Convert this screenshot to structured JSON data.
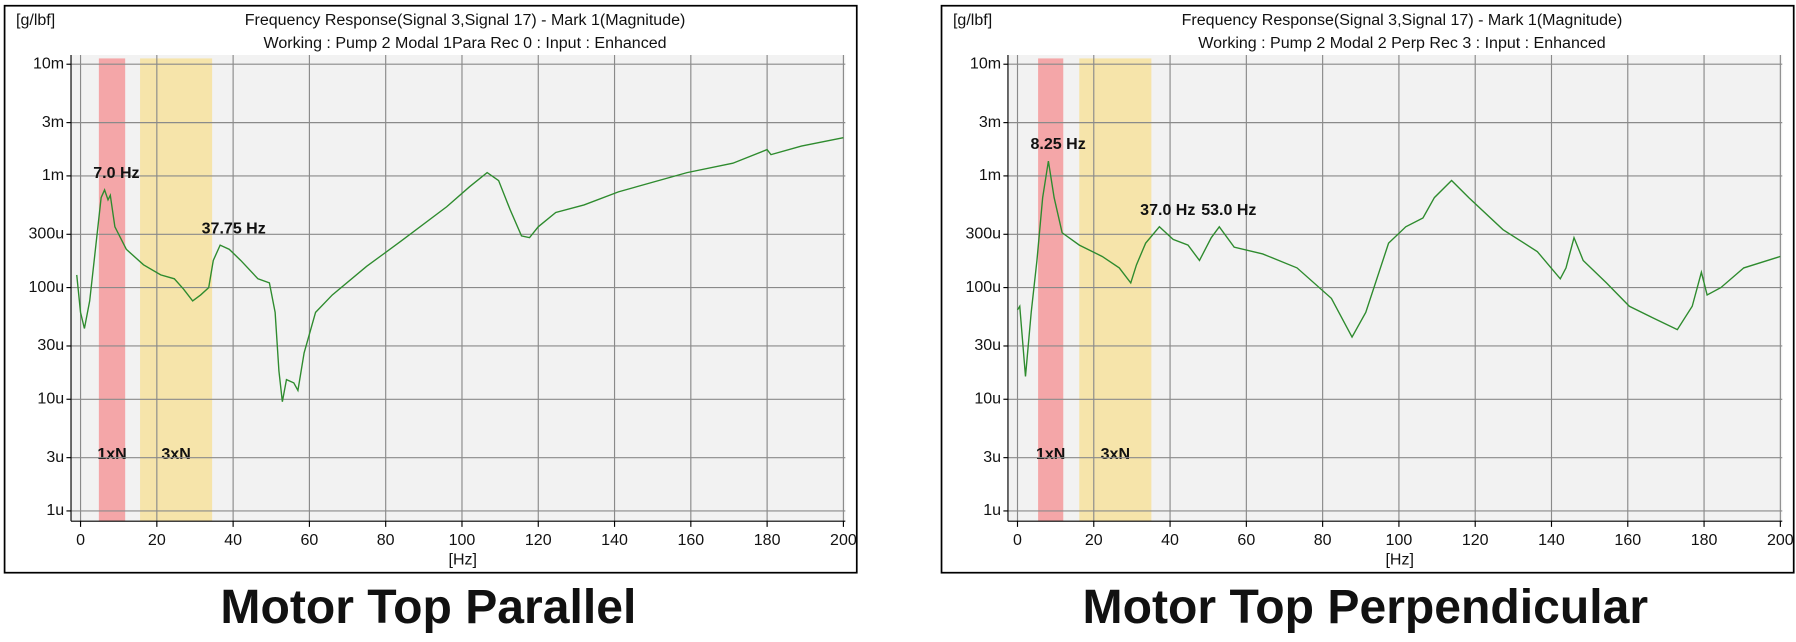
{
  "chart_data": [
    {
      "type": "line",
      "title": "Frequency Response(Signal 3,Signal 17) - Mark 1(Magnitude)",
      "subtitle": "Working : Pump 2 Modal 1Para Rec 0 : Input : Enhanced",
      "y_label": "[g/lbf]",
      "x_label": "[Hz]",
      "caption": "Motor Top Parallel",
      "log_y": true,
      "grid": true,
      "color": "#2e8b2e",
      "xlim": [
        -2.5,
        200.5
      ],
      "xticks": [
        0,
        20,
        40,
        60,
        80,
        100,
        120,
        140,
        160,
        180,
        200
      ],
      "ylim": [
        8.1e-07,
        0.0121
      ],
      "yticks": [
        {
          "value": 1e-06,
          "label": "1u"
        },
        {
          "value": 3e-06,
          "label": "3u"
        },
        {
          "value": 1e-05,
          "label": "10u"
        },
        {
          "value": 3e-05,
          "label": "30u"
        },
        {
          "value": 0.0001,
          "label": "100u"
        },
        {
          "value": 0.0003,
          "label": "300u"
        },
        {
          "value": 0.001,
          "label": "1m"
        },
        {
          "value": 0.003,
          "label": "3m"
        },
        {
          "value": 0.01,
          "label": "10m"
        }
      ],
      "bands": [
        {
          "label": "1xN",
          "x": [
            4.8,
            11.7
          ],
          "color": "#f4a6a8"
        },
        {
          "label": "3xN",
          "x": [
            15.6,
            34.5
          ],
          "color": "#f6e4aa"
        }
      ],
      "annotations": [
        {
          "label": "7.0 Hz",
          "x": 7.0,
          "y": 0.00075
        },
        {
          "label": "37.75 Hz",
          "x": 37.75,
          "y": 0.00024
        }
      ],
      "x": [
        -1,
        0,
        1,
        2.4,
        3.9,
        5.4,
        6.3,
        7.2,
        7.8,
        9,
        12,
        16.5,
        21,
        24.6,
        27,
        29.4,
        31.5,
        33.6,
        34.8,
        36.6,
        39,
        42,
        46.5,
        49.5,
        51,
        52,
        52.9,
        54,
        55.9,
        57,
        58.6,
        61.6,
        66,
        75,
        84,
        96,
        102,
        106.6,
        109.6,
        112.6,
        115.6,
        117.7,
        120,
        124.6,
        132,
        141,
        159,
        171,
        180,
        181,
        189,
        200
      ],
      "values": [
        0.00013,
        6e-05,
        4.3e-05,
        7.6e-05,
        0.00022,
        0.00064,
        0.00075,
        0.00061,
        0.00067,
        0.00035,
        0.00022,
        0.00016,
        0.00013,
        0.00012,
        9.7e-05,
        7.6e-05,
        8.6e-05,
        0.0001,
        0.000175,
        0.00024,
        0.00022,
        0.000175,
        0.00012,
        0.00011,
        6e-05,
        1.8e-05,
        9.5e-06,
        1.5e-05,
        1.4e-05,
        1.2e-05,
        2.6e-05,
        6e-05,
        8.6e-05,
        0.000155,
        0.00026,
        0.00053,
        0.0008,
        0.00107,
        0.00091,
        0.0005,
        0.00029,
        0.00028,
        0.00035,
        0.00047,
        0.00055,
        0.00072,
        0.00107,
        0.0013,
        0.00172,
        0.00155,
        0.00185,
        0.0022
      ]
    },
    {
      "type": "line",
      "title": "Frequency Response(Signal 3,Signal 17) - Mark 1(Magnitude)",
      "subtitle": "Working : Pump 2 Modal 2 Perp Rec 3 : Input : Enhanced",
      "y_label": "[g/lbf]",
      "x_label": "[Hz]",
      "caption": "Motor Top Perpendicular",
      "log_y": true,
      "grid": true,
      "color": "#2e8b2e",
      "xlim": [
        -2.5,
        200.5
      ],
      "xticks": [
        0,
        20,
        40,
        60,
        80,
        100,
        120,
        140,
        160,
        180,
        200
      ],
      "ylim": [
        8.1e-07,
        0.0121
      ],
      "yticks": [
        {
          "value": 1e-06,
          "label": "1u"
        },
        {
          "value": 3e-06,
          "label": "3u"
        },
        {
          "value": 1e-05,
          "label": "10u"
        },
        {
          "value": 3e-05,
          "label": "30u"
        },
        {
          "value": 0.0001,
          "label": "100u"
        },
        {
          "value": 0.0003,
          "label": "300u"
        },
        {
          "value": 0.001,
          "label": "1m"
        },
        {
          "value": 0.003,
          "label": "3m"
        },
        {
          "value": 0.01,
          "label": "10m"
        }
      ],
      "bands": [
        {
          "label": "1xN",
          "x": [
            5.4,
            12.0
          ],
          "color": "#f4a6a8"
        },
        {
          "label": "3xN",
          "x": [
            16.2,
            35.1
          ],
          "color": "#f6e4aa"
        }
      ],
      "annotations": [
        {
          "label": "8.25 Hz",
          "x": 8.25,
          "y": 0.00136
        },
        {
          "label": "37.0 Hz",
          "x": 37.0,
          "y": 0.00035
        },
        {
          "label": "53.0 Hz",
          "x": 53.0,
          "y": 0.00035
        }
      ],
      "x": [
        0,
        0.6,
        2.1,
        3.6,
        5.1,
        6.6,
        8.1,
        9.6,
        11.7,
        16.2,
        22.2,
        26.7,
        29.7,
        31.2,
        33.6,
        37.2,
        40.8,
        44.7,
        47.7,
        50.8,
        52.9,
        56.8,
        64.3,
        73.3,
        82.3,
        87.7,
        91.3,
        97.3,
        101.8,
        106.3,
        109.3,
        113.8,
        118.3,
        127.3,
        136.3,
        142.3,
        143.8,
        145.9,
        148.3,
        154.4,
        160.4,
        166.4,
        173,
        176.9,
        179.3,
        180.8,
        184.4,
        190.4,
        200
      ],
      "values": [
        6.3e-05,
        6.8e-05,
        1.6e-05,
        6e-05,
        0.000175,
        0.00064,
        0.00136,
        0.00064,
        0.00031,
        0.00024,
        0.00019,
        0.00015,
        0.00011,
        0.00016,
        0.00025,
        0.00035,
        0.00027,
        0.00024,
        0.000175,
        0.00028,
        0.00035,
        0.00023,
        0.0002,
        0.00015,
        8e-05,
        3.6e-05,
        6e-05,
        0.00025,
        0.00035,
        0.00042,
        0.00064,
        0.00091,
        0.00064,
        0.00033,
        0.00021,
        0.00012,
        0.00015,
        0.00028,
        0.000175,
        0.00011,
        6.8e-05,
        5.4e-05,
        4.2e-05,
        6.8e-05,
        0.000137,
        8.6e-05,
        0.0001,
        0.00015,
        0.00019
      ]
    }
  ]
}
